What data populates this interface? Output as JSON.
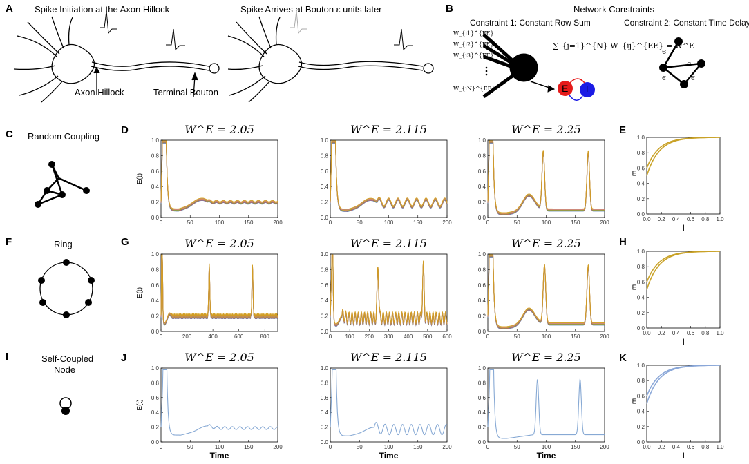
{
  "panels": {
    "A": {
      "letter": "A",
      "title_left": "Spike Initiation at the Axon Hillock",
      "title_right": "Spike Arrives at Bouton ε units later",
      "label_hillock": "Axon Hillock",
      "label_bouton": "Terminal Bouton"
    },
    "B": {
      "letter": "B",
      "title": "Network Constraints",
      "constraint1": "Constraint 1:  Constant Row Sum",
      "constraint2": "Constraint 2:  Constant Time Delay",
      "weights": [
        "W_{i1}^{EE}",
        "W_{i2}^{EE}",
        "W_{i3}^{EE}",
        "W_{iN}^{EE}"
      ],
      "equation": "∑_{j=1}^{N} W_{ij}^{EE} = W^E",
      "node_E": "E",
      "node_I": "I",
      "eps": "ϵ"
    },
    "C": {
      "letter": "C",
      "title": "Random Coupling"
    },
    "F": {
      "letter": "F",
      "title": "Ring"
    },
    "I": {
      "letter": "I",
      "title_line1": "Self-Coupled",
      "title_line2": "Node"
    },
    "D": {
      "letter": "D"
    },
    "G": {
      "letter": "G"
    },
    "J": {
      "letter": "J"
    },
    "E": {
      "letter": "E"
    },
    "H": {
      "letter": "H"
    },
    "K": {
      "letter": "K"
    }
  },
  "axis": {
    "ylabel": "E(t)",
    "xlabel": "Time",
    "phase_ylabel": "E",
    "phase_xlabel": "I"
  },
  "colors": {
    "multi": [
      "#4e79a7",
      "#e15759",
      "#59a14f",
      "#f28e2b",
      "#b07aa1",
      "#d4a017"
    ],
    "single": "#7aa0cf",
    "phase_multi": "#c9a227",
    "phase_single": "#8aa7d8",
    "node_E": "#e51b1b",
    "node_I": "#1b1be5"
  },
  "chart_data": [
    {
      "id": "D1",
      "type": "line",
      "row": "D",
      "title": "W^E = 2.05",
      "xlim": [
        0,
        200
      ],
      "ylim": [
        0,
        1
      ],
      "xticks": [
        0,
        50,
        100,
        150,
        200
      ],
      "yticks": [
        0,
        0.2,
        0.4,
        0.6,
        0.8,
        1.0
      ],
      "ylabel": "E(t)",
      "xlabel": "",
      "style": "multi",
      "model": {
        "spike_t": 5,
        "base": 0.2,
        "bump_t": 65,
        "bump_h": 0.05,
        "osc_amp": 0.01,
        "osc_per": 12,
        "osc_start": 80,
        "later_spikes": []
      }
    },
    {
      "id": "D2",
      "type": "line",
      "row": "D",
      "title": "W^E = 2.115",
      "xlim": [
        0,
        200
      ],
      "ylim": [
        0,
        1
      ],
      "xticks": [
        0,
        50,
        100,
        150,
        200
      ],
      "yticks": [
        0,
        0.2,
        0.4,
        0.6,
        0.8,
        1.0
      ],
      "ylabel": "",
      "xlabel": "",
      "style": "multi",
      "model": {
        "spike_t": 5,
        "base": 0.19,
        "bump_t": 65,
        "bump_h": 0.06,
        "osc_amp": 0.05,
        "osc_per": 16,
        "osc_start": 80,
        "later_spikes": []
      }
    },
    {
      "id": "D3",
      "type": "line",
      "row": "D",
      "title": "W^E = 2.25",
      "xlim": [
        0,
        200
      ],
      "ylim": [
        0,
        1
      ],
      "xticks": [
        0,
        50,
        100,
        150,
        200
      ],
      "yticks": [
        0,
        0.2,
        0.4,
        0.6,
        0.8,
        1.0
      ],
      "ylabel": "",
      "xlabel": "",
      "style": "multi",
      "model": {
        "spike_t": 5,
        "base": 0.1,
        "bump_t": 70,
        "bump_h": 0.2,
        "osc_amp": 0,
        "osc_per": 10,
        "osc_start": 200,
        "later_spikes": [
          95,
          172
        ]
      }
    },
    {
      "id": "G1",
      "type": "line",
      "row": "G",
      "title": "W^E = 2.05",
      "xlim": [
        0,
        900
      ],
      "ylim": [
        0,
        1
      ],
      "xticks": [
        0,
        200,
        400,
        600,
        800
      ],
      "yticks": [
        0,
        0.2,
        0.4,
        0.6,
        0.8,
        1.0
      ],
      "ylabel": "E(t)",
      "xlabel": "",
      "style": "multi",
      "model": {
        "spike_t": 8,
        "base": 0.2,
        "bump_t": 60,
        "bump_h": 0.04,
        "osc_amp": 0.02,
        "osc_per": 10,
        "osc_start": 80,
        "later_spikes": [
          372,
          705
        ]
      }
    },
    {
      "id": "G2",
      "type": "line",
      "row": "G",
      "title": "W^E = 2.115",
      "xlim": [
        0,
        600
      ],
      "ylim": [
        0,
        1
      ],
      "xticks": [
        0,
        100,
        200,
        300,
        400,
        500,
        600
      ],
      "yticks": [
        0,
        0.2,
        0.4,
        0.6,
        0.8,
        1.0
      ],
      "ylabel": "",
      "xlabel": "",
      "style": "multi",
      "model": {
        "spike_t": 10,
        "base": 0.17,
        "bump_t": 60,
        "bump_h": 0.05,
        "osc_amp": 0.07,
        "osc_per": 16,
        "osc_start": 60,
        "later_spikes": [
          245,
          478
        ]
      }
    },
    {
      "id": "G3",
      "type": "line",
      "row": "G",
      "title": "W^E = 2.25",
      "xlim": [
        0,
        200
      ],
      "ylim": [
        0,
        1
      ],
      "xticks": [
        0,
        50,
        100,
        150,
        200
      ],
      "yticks": [
        0,
        0.2,
        0.4,
        0.6,
        0.8,
        1.0
      ],
      "ylabel": "",
      "xlabel": "",
      "style": "multi",
      "model": {
        "spike_t": 5,
        "base": 0.1,
        "bump_t": 70,
        "bump_h": 0.2,
        "osc_amp": 0,
        "osc_per": 10,
        "osc_start": 200,
        "later_spikes": [
          97,
          172
        ]
      }
    },
    {
      "id": "J1",
      "type": "line",
      "row": "J",
      "title": "W^E = 2.05",
      "xlim": [
        0,
        200
      ],
      "ylim": [
        0,
        1
      ],
      "xticks": [
        0,
        50,
        100,
        150,
        200
      ],
      "yticks": [
        0,
        0.2,
        0.4,
        0.6,
        0.8,
        1.0
      ],
      "ylabel": "E(t)",
      "xlabel": "Time",
      "style": "single",
      "model": {
        "spike_t": 6,
        "base": 0.19,
        "bump_t": 75,
        "bump_h": 0.04,
        "osc_amp": 0.02,
        "osc_per": 13,
        "osc_start": 80,
        "later_spikes": []
      }
    },
    {
      "id": "J2",
      "type": "line",
      "row": "J",
      "title": "W^E = 2.115",
      "xlim": [
        0,
        200
      ],
      "ylim": [
        0,
        1
      ],
      "xticks": [
        0,
        50,
        100,
        150,
        200
      ],
      "yticks": [
        0,
        0.2,
        0.4,
        0.6,
        0.8,
        1.0
      ],
      "ylabel": "",
      "xlabel": "Time",
      "style": "single",
      "model": {
        "spike_t": 6,
        "base": 0.17,
        "bump_t": 70,
        "bump_h": 0.04,
        "osc_amp": 0.07,
        "osc_per": 15,
        "osc_start": 75,
        "later_spikes": []
      }
    },
    {
      "id": "J3",
      "type": "line",
      "row": "J",
      "title": "W^E = 2.25",
      "xlim": [
        0,
        200
      ],
      "ylim": [
        0,
        1
      ],
      "xticks": [
        0,
        50,
        100,
        150,
        200
      ],
      "yticks": [
        0,
        0.2,
        0.4,
        0.6,
        0.8,
        1.0
      ],
      "ylabel": "",
      "xlabel": "Time",
      "style": "single",
      "model": {
        "spike_t": 6,
        "base": 0.1,
        "bump_t": 70,
        "bump_h": 0,
        "osc_amp": 0,
        "osc_per": 10,
        "osc_start": 200,
        "later_spikes": [
          85,
          158
        ]
      }
    },
    {
      "id": "E",
      "type": "line",
      "row": "E",
      "title": "",
      "xlim": [
        0,
        1
      ],
      "ylim": [
        0,
        1
      ],
      "xticks": [
        0,
        0.2,
        0.4,
        0.6,
        0.8,
        1.0
      ],
      "yticks": [
        0,
        0.2,
        0.4,
        0.6,
        0.8,
        1.0
      ],
      "ylabel": "E",
      "xlabel": "I",
      "style": "phase_multi",
      "curves": [
        {
          "start": 0.5,
          "k": 6
        },
        {
          "start": 0.6,
          "k": 12
        }
      ]
    },
    {
      "id": "H",
      "type": "line",
      "row": "H",
      "title": "",
      "xlim": [
        0,
        1
      ],
      "ylim": [
        0,
        1
      ],
      "xticks": [
        0,
        0.2,
        0.4,
        0.6,
        0.8,
        1.0
      ],
      "yticks": [
        0,
        0.2,
        0.4,
        0.6,
        0.8,
        1.0
      ],
      "ylabel": "E",
      "xlabel": "I",
      "style": "phase_multi",
      "curves": [
        {
          "start": 0.5,
          "k": 6
        },
        {
          "start": 0.6,
          "k": 12
        }
      ]
    },
    {
      "id": "K",
      "type": "line",
      "row": "K",
      "title": "",
      "xlim": [
        0,
        1
      ],
      "ylim": [
        0,
        1
      ],
      "xticks": [
        0,
        0.2,
        0.4,
        0.6,
        0.8,
        1.0
      ],
      "yticks": [
        0,
        0.2,
        0.4,
        0.6,
        0.8,
        1.0
      ],
      "ylabel": "E",
      "xlabel": "I",
      "style": "phase_single",
      "curves": [
        {
          "start": 0.5,
          "k": 6
        },
        {
          "start": 0.6,
          "k": 12
        }
      ]
    }
  ]
}
